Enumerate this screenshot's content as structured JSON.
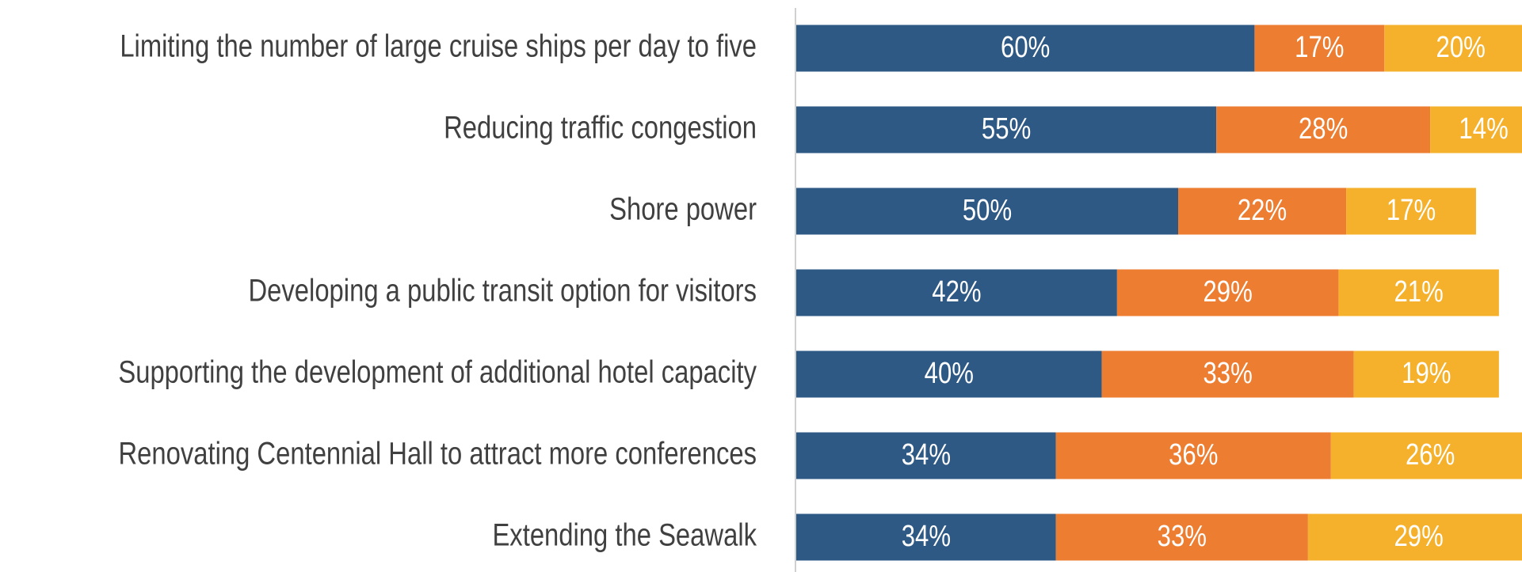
{
  "chart_data": {
    "type": "stacked_bar_horizontal",
    "categories": [
      "Limiting the number of large cruise ships per day to five",
      "Reducing traffic congestion",
      "Shore power",
      "Developing a public transit option for visitors",
      "Supporting the development of additional hotel capacity",
      "Renovating Centennial Hall to attract more conferences",
      "Extending the Seawalk"
    ],
    "series": [
      {
        "color": "#2e5984",
        "values": [
          60,
          55,
          50,
          42,
          40,
          34,
          34
        ],
        "value_labels": [
          "60%",
          "55%",
          "50%",
          "42%",
          "40%",
          "34%",
          "34%"
        ]
      },
      {
        "color": "#ed7d31",
        "values": [
          17,
          28,
          22,
          29,
          33,
          36,
          33
        ],
        "value_labels": [
          "17%",
          "28%",
          "22%",
          "29%",
          "33%",
          "36%",
          "33%"
        ]
      },
      {
        "color": "#f6b12c",
        "values": [
          20,
          14,
          17,
          21,
          19,
          26,
          29
        ],
        "value_labels": [
          "20%",
          "14%",
          "17%",
          "21%",
          "19%",
          "26%",
          "29%"
        ]
      }
    ]
  }
}
